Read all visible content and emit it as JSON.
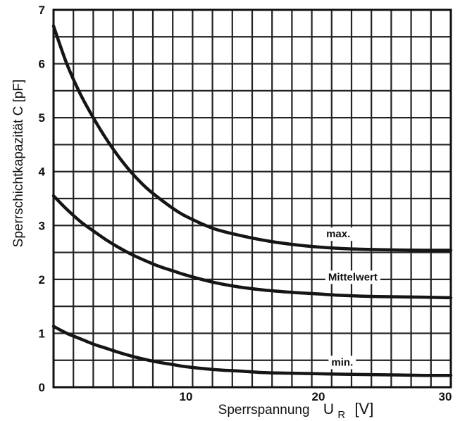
{
  "chart_data": {
    "type": "line",
    "xlabel": "Sperrspannung U_R [V]",
    "xlabel_parts": {
      "main": "Sperrspannung",
      "symbol": "U",
      "subscript": "R",
      "unit": "[V]"
    },
    "ylabel": "Sperrschichtkapazität C [pF]",
    "xlim": [
      0,
      30
    ],
    "ylim": [
      0,
      7
    ],
    "x_ticks": [
      "10",
      "20",
      "30"
    ],
    "y_ticks": [
      "0",
      "1",
      "2",
      "3",
      "4",
      "5",
      "6",
      "7"
    ],
    "minor_x_step": 1.5,
    "minor_y_step": 0.5,
    "grid": true,
    "series": [
      {
        "name": "max.",
        "x": [
          0,
          1,
          2,
          3,
          4,
          5,
          6,
          7,
          8,
          9,
          10,
          12,
          14,
          16,
          18,
          20,
          22,
          25,
          28,
          30
        ],
        "y": [
          6.7,
          6.0,
          5.45,
          5.0,
          4.6,
          4.25,
          3.95,
          3.7,
          3.5,
          3.32,
          3.17,
          2.95,
          2.82,
          2.72,
          2.65,
          2.6,
          2.57,
          2.55,
          2.54,
          2.54
        ]
      },
      {
        "name": "Mittelwert",
        "x": [
          0,
          1,
          2,
          3,
          4,
          5,
          6,
          7,
          8,
          9,
          10,
          12,
          14,
          16,
          18,
          20,
          22,
          25,
          28,
          30
        ],
        "y": [
          3.55,
          3.3,
          3.08,
          2.9,
          2.73,
          2.58,
          2.45,
          2.34,
          2.24,
          2.16,
          2.08,
          1.95,
          1.86,
          1.8,
          1.76,
          1.73,
          1.7,
          1.68,
          1.67,
          1.66
        ]
      },
      {
        "name": "min.",
        "x": [
          0,
          1,
          2,
          3,
          4,
          5,
          6,
          7,
          8,
          9,
          10,
          12,
          14,
          16,
          18,
          20,
          22,
          25,
          28,
          30
        ],
        "y": [
          1.13,
          1.0,
          0.9,
          0.8,
          0.72,
          0.64,
          0.57,
          0.51,
          0.46,
          0.42,
          0.38,
          0.33,
          0.3,
          0.27,
          0.26,
          0.25,
          0.24,
          0.23,
          0.22,
          0.22
        ]
      }
    ]
  }
}
